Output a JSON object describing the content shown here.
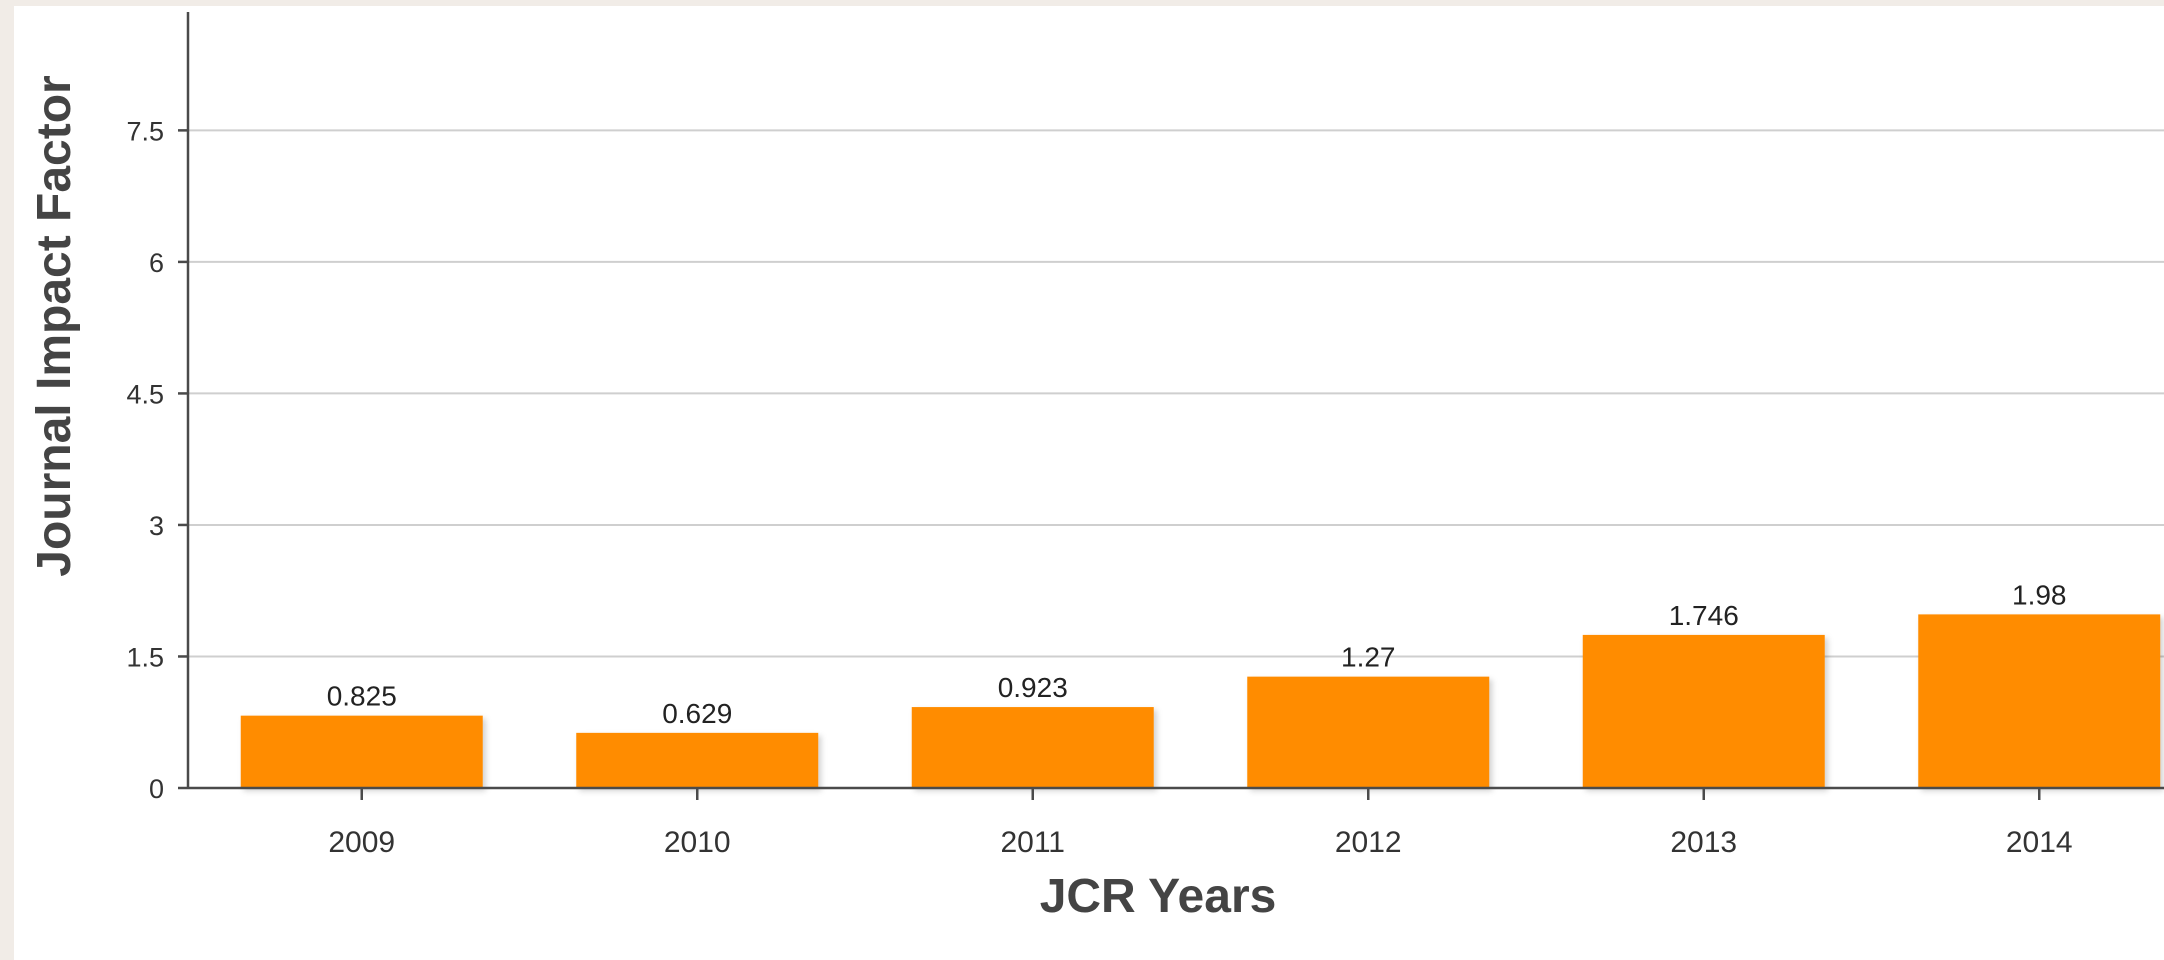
{
  "chart_data": {
    "type": "bar",
    "categories": [
      "2009",
      "2010",
      "2011",
      "2012",
      "2013",
      "2014"
    ],
    "values": [
      0.825,
      0.629,
      0.923,
      1.27,
      1.746,
      1.98
    ],
    "data_labels": [
      "0.825",
      "0.629",
      "0.923",
      "1.27",
      "1.746",
      "1.98"
    ],
    "title": "",
    "xlabel": "JCR Years",
    "ylabel": "Journal Impact Factor",
    "ylim": [
      0,
      8.85
    ],
    "yticks": [
      0,
      1.5,
      3,
      4.5,
      6,
      7.5
    ],
    "ytick_labels": [
      "0",
      "1.5",
      "3",
      "4.5",
      "6",
      "7.5"
    ],
    "grid": true,
    "legend": "none",
    "bar_color": "#ff8c00"
  }
}
